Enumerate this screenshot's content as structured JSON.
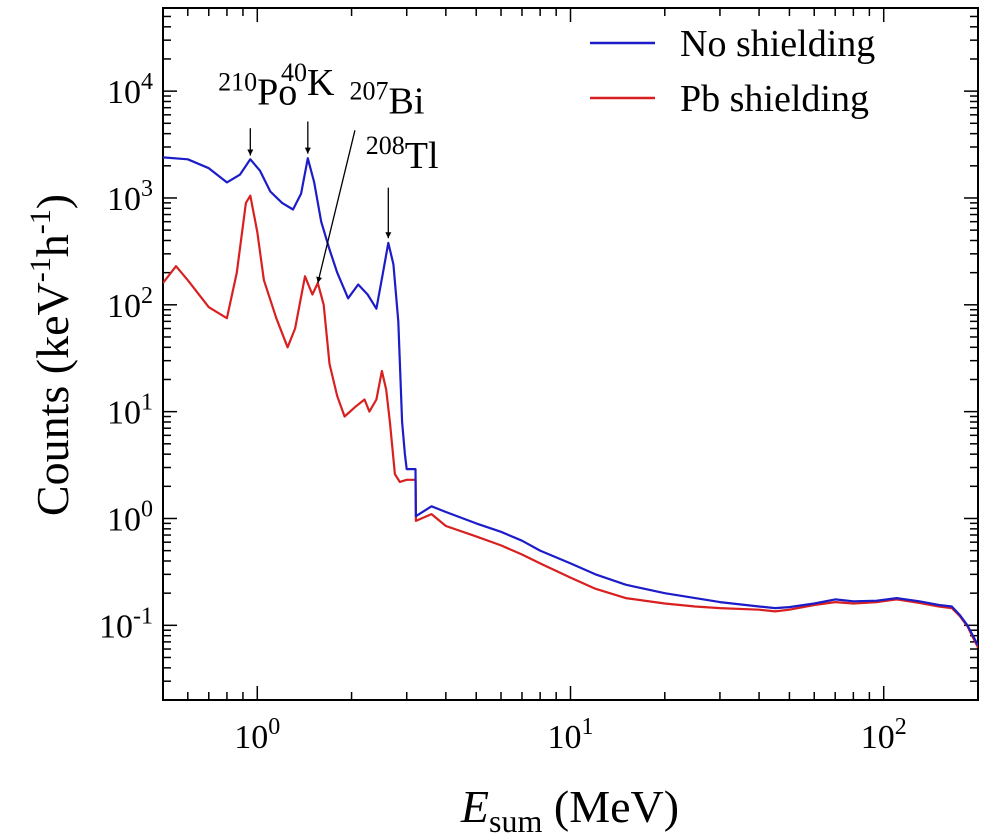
{
  "chart_data": {
    "type": "line",
    "x_scale": "log",
    "y_scale": "log",
    "xlim": [
      0.5,
      200
    ],
    "ylim": [
      0.02,
      60000
    ],
    "xlabel": {
      "main": "E",
      "sub": "sum",
      "rest": " (MeV)"
    },
    "ylabel": {
      "text": "Counts (keV",
      "exp1": "-1",
      "mid": "h",
      "exp2": "-1",
      "close": ")"
    },
    "x_ticks": [
      {
        "value": 1,
        "base": "10",
        "exp": "0"
      },
      {
        "value": 10,
        "base": "10",
        "exp": "1"
      },
      {
        "value": 100,
        "base": "10",
        "exp": "2"
      }
    ],
    "y_ticks": [
      {
        "value": 0.1,
        "base": "10",
        "exp": "-1"
      },
      {
        "value": 1,
        "base": "10",
        "exp": "0"
      },
      {
        "value": 10,
        "base": "10",
        "exp": "1"
      },
      {
        "value": 100,
        "base": "10",
        "exp": "2"
      },
      {
        "value": 1000,
        "base": "10",
        "exp": "3"
      },
      {
        "value": 10000,
        "base": "10",
        "exp": "4"
      }
    ],
    "legend_position": "top-right",
    "series": [
      {
        "name": "No shielding",
        "color": "#1c1cc8",
        "points": [
          [
            0.5,
            2400
          ],
          [
            0.6,
            2300
          ],
          [
            0.7,
            1900
          ],
          [
            0.8,
            1400
          ],
          [
            0.88,
            1650
          ],
          [
            0.95,
            2300
          ],
          [
            1.02,
            1800
          ],
          [
            1.1,
            1150
          ],
          [
            1.2,
            900
          ],
          [
            1.3,
            780
          ],
          [
            1.38,
            1100
          ],
          [
            1.45,
            2350
          ],
          [
            1.52,
            1400
          ],
          [
            1.6,
            600
          ],
          [
            1.7,
            330
          ],
          [
            1.8,
            200
          ],
          [
            1.95,
            115
          ],
          [
            2.1,
            155
          ],
          [
            2.25,
            125
          ],
          [
            2.4,
            92
          ],
          [
            2.52,
            200
          ],
          [
            2.62,
            380
          ],
          [
            2.72,
            240
          ],
          [
            2.82,
            70
          ],
          [
            2.9,
            8
          ],
          [
            2.96,
            4
          ],
          [
            3.0,
            2.9
          ],
          [
            3.2,
            2.9
          ],
          [
            3.21,
            1.05
          ],
          [
            3.6,
            1.3
          ],
          [
            4,
            1.15
          ],
          [
            5,
            0.9
          ],
          [
            6,
            0.75
          ],
          [
            7,
            0.62
          ],
          [
            8,
            0.5
          ],
          [
            10,
            0.38
          ],
          [
            12,
            0.3
          ],
          [
            15,
            0.24
          ],
          [
            20,
            0.2
          ],
          [
            25,
            0.18
          ],
          [
            30,
            0.165
          ],
          [
            40,
            0.15
          ],
          [
            45,
            0.145
          ],
          [
            50,
            0.148
          ],
          [
            60,
            0.16
          ],
          [
            70,
            0.175
          ],
          [
            80,
            0.168
          ],
          [
            95,
            0.17
          ],
          [
            110,
            0.18
          ],
          [
            130,
            0.168
          ],
          [
            150,
            0.155
          ],
          [
            165,
            0.15
          ],
          [
            175,
            0.125
          ],
          [
            185,
            0.1
          ],
          [
            200,
            0.065
          ]
        ]
      },
      {
        "name": "Pb shielding",
        "color": "#d92020",
        "points": [
          [
            0.5,
            160
          ],
          [
            0.55,
            230
          ],
          [
            0.6,
            170
          ],
          [
            0.7,
            95
          ],
          [
            0.8,
            75
          ],
          [
            0.86,
            200
          ],
          [
            0.92,
            900
          ],
          [
            0.95,
            1050
          ],
          [
            1.0,
            480
          ],
          [
            1.05,
            170
          ],
          [
            1.15,
            75
          ],
          [
            1.25,
            40
          ],
          [
            1.32,
            60
          ],
          [
            1.42,
            185
          ],
          [
            1.5,
            125
          ],
          [
            1.56,
            160
          ],
          [
            1.63,
            100
          ],
          [
            1.7,
            28
          ],
          [
            1.8,
            14
          ],
          [
            1.9,
            9
          ],
          [
            2.05,
            11
          ],
          [
            2.2,
            13
          ],
          [
            2.28,
            10
          ],
          [
            2.4,
            13
          ],
          [
            2.5,
            24
          ],
          [
            2.58,
            16
          ],
          [
            2.65,
            8
          ],
          [
            2.75,
            2.6
          ],
          [
            2.85,
            2.2
          ],
          [
            3.0,
            2.3
          ],
          [
            3.2,
            2.3
          ],
          [
            3.21,
            0.95
          ],
          [
            3.6,
            1.1
          ],
          [
            4,
            0.85
          ],
          [
            5,
            0.68
          ],
          [
            6,
            0.56
          ],
          [
            7,
            0.46
          ],
          [
            8,
            0.38
          ],
          [
            10,
            0.28
          ],
          [
            12,
            0.22
          ],
          [
            15,
            0.18
          ],
          [
            20,
            0.16
          ],
          [
            25,
            0.15
          ],
          [
            30,
            0.145
          ],
          [
            40,
            0.14
          ],
          [
            45,
            0.135
          ],
          [
            50,
            0.14
          ],
          [
            60,
            0.155
          ],
          [
            70,
            0.165
          ],
          [
            80,
            0.16
          ],
          [
            95,
            0.165
          ],
          [
            110,
            0.175
          ],
          [
            130,
            0.162
          ],
          [
            150,
            0.15
          ],
          [
            165,
            0.145
          ],
          [
            175,
            0.122
          ],
          [
            185,
            0.098
          ],
          [
            200,
            0.062
          ]
        ]
      }
    ],
    "annotations": [
      {
        "label": "Po",
        "mass": "210",
        "text_x": 0.75,
        "text_y": 7500,
        "arrow_from": [
          0.95,
          4500
        ],
        "arrow_to": [
          0.95,
          2500
        ]
      },
      {
        "label": "K",
        "mass": "40",
        "text_x": 1.19,
        "text_y": 9200,
        "arrow_from": [
          1.45,
          5200
        ],
        "arrow_to": [
          1.45,
          2600
        ]
      },
      {
        "label": "Bi",
        "mass": "207",
        "text_x": 1.97,
        "text_y": 6200,
        "arrow_from": [
          2.05,
          4300
        ],
        "arrow_to": [
          1.56,
          160
        ]
      },
      {
        "label": "Tl",
        "mass": "208",
        "text_x": 2.22,
        "text_y": 1900,
        "arrow_from": [
          2.62,
          1250
        ],
        "arrow_to": [
          2.62,
          420
        ]
      }
    ]
  }
}
